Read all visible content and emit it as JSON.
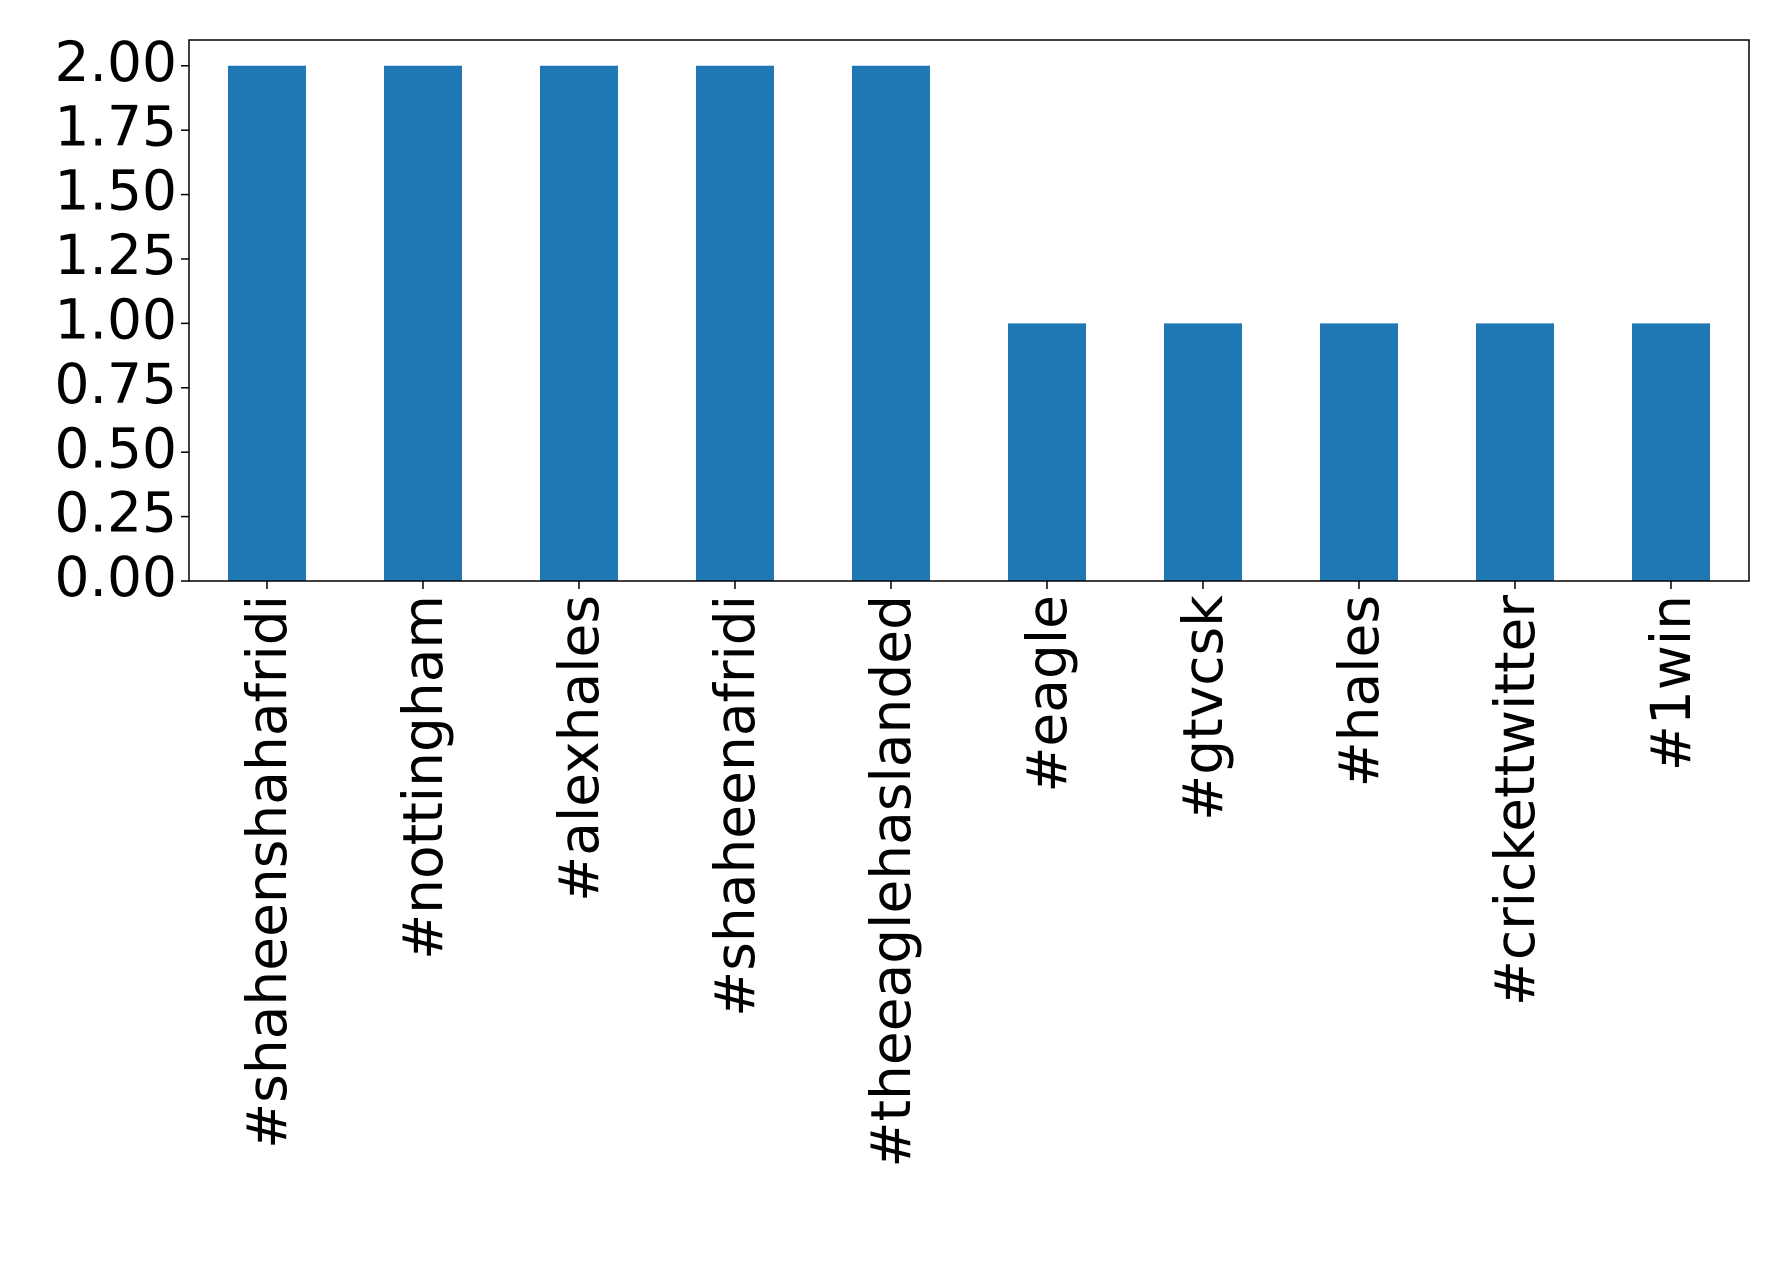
{
  "chart_data": {
    "type": "bar",
    "categories": [
      "#shaheenshahafridi",
      "#nottingham",
      "#alexhales",
      "#shaheenafridi",
      "#theeaglehaslanded",
      "#eagle",
      "#gtvcsk",
      "#hales",
      "#crickettwitter",
      "#1win"
    ],
    "values": [
      2,
      2,
      2,
      2,
      2,
      1,
      1,
      1,
      1,
      1
    ],
    "color": "#1f77b4",
    "ylim": [
      0,
      2.1
    ],
    "yticks": [
      {
        "value": 0,
        "label": "0.00"
      },
      {
        "value": 0.25,
        "label": "0.25"
      },
      {
        "value": 0.5,
        "label": "0.50"
      },
      {
        "value": 0.75,
        "label": "0.75"
      },
      {
        "value": 1,
        "label": "1.00"
      },
      {
        "value": 1.25,
        "label": "1.25"
      },
      {
        "value": 1.5,
        "label": "1.50"
      },
      {
        "value": 1.75,
        "label": "1.75"
      },
      {
        "value": 2,
        "label": "2.00"
      }
    ],
    "grid": false
  }
}
